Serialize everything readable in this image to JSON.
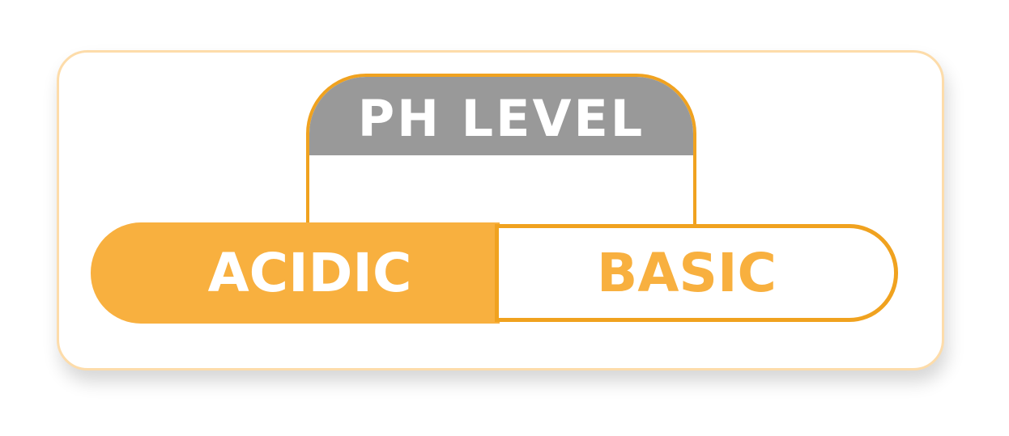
{
  "header": {
    "title": "PH LEVEL"
  },
  "scale": {
    "acidic_label": "ACIDIC",
    "basic_label": "BASIC"
  },
  "colors": {
    "accent_orange": "#f8b03f",
    "border_orange": "#f0a21f",
    "header_gray": "#999999",
    "card_border": "#fddcaa"
  }
}
